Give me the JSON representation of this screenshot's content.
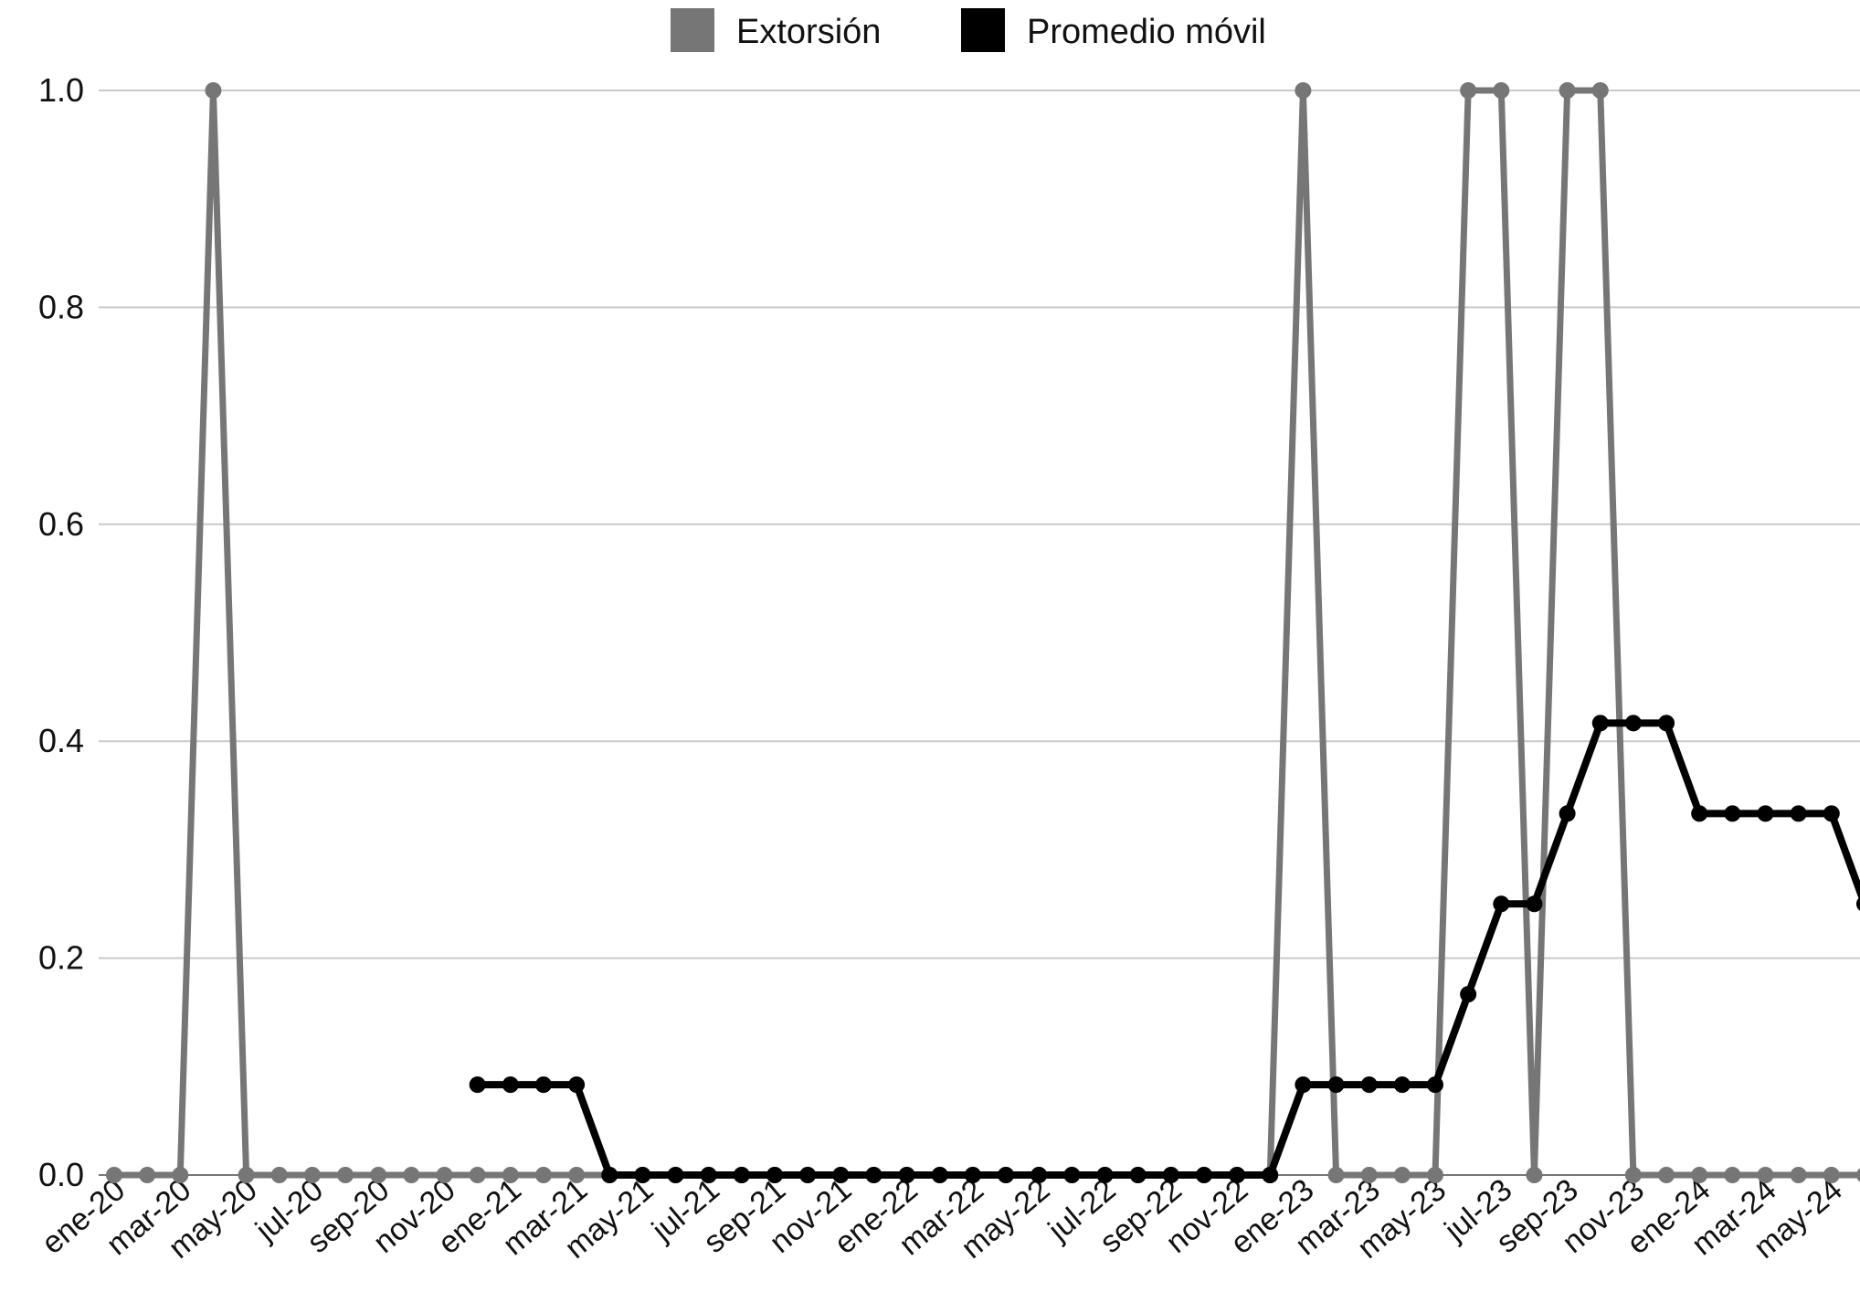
{
  "chart_data": {
    "type": "line",
    "title": "",
    "xlabel": "",
    "ylabel": "",
    "ylim": [
      0,
      1.0
    ],
    "yticks": [
      "0.0",
      "0.2",
      "0.4",
      "0.6",
      "0.8",
      "1.0"
    ],
    "grid": true,
    "legend": "top-center",
    "x": [
      "ene-20",
      "feb-20",
      "mar-20",
      "abr-20",
      "may-20",
      "jun-20",
      "jul-20",
      "ago-20",
      "sep-20",
      "oct-20",
      "nov-20",
      "dic-20",
      "ene-21",
      "feb-21",
      "mar-21",
      "abr-21",
      "may-21",
      "jun-21",
      "jul-21",
      "ago-21",
      "sep-21",
      "oct-21",
      "nov-21",
      "dic-21",
      "ene-22",
      "feb-22",
      "mar-22",
      "abr-22",
      "may-22",
      "jun-22",
      "jul-22",
      "ago-22",
      "sep-22",
      "oct-22",
      "nov-22",
      "dic-22",
      "ene-23",
      "feb-23",
      "mar-23",
      "abr-23",
      "may-23",
      "jun-23",
      "jul-23",
      "ago-23",
      "sep-23",
      "oct-23",
      "nov-23",
      "dic-23",
      "ene-24",
      "feb-24",
      "mar-24",
      "abr-24",
      "may-24",
      "jun-24"
    ],
    "xtick_labels": [
      "ene-20",
      "mar-20",
      "may-20",
      "jul-20",
      "sep-20",
      "nov-20",
      "ene-21",
      "mar-21",
      "may-21",
      "jul-21",
      "sep-21",
      "nov-21",
      "ene-22",
      "mar-22",
      "may-22",
      "jul-22",
      "sep-22",
      "nov-22",
      "ene-23",
      "mar-23",
      "may-23",
      "jul-23",
      "sep-23",
      "nov-23",
      "ene-24",
      "mar-24",
      "may-24"
    ],
    "series": [
      {
        "name": "Extorsión",
        "color": "#767676",
        "values": [
          0,
          0,
          0,
          1,
          0,
          0,
          0,
          0,
          0,
          0,
          0,
          0,
          0,
          0,
          0,
          0,
          0,
          0,
          0,
          0,
          0,
          0,
          0,
          0,
          0,
          0,
          0,
          0,
          0,
          0,
          0,
          0,
          0,
          0,
          0,
          0,
          1,
          0,
          0,
          0,
          0,
          1,
          1,
          0,
          1,
          1,
          0,
          0,
          0,
          0,
          0,
          0,
          0,
          0
        ]
      },
      {
        "name": "Promedio móvil",
        "color": "#000000",
        "values": [
          null,
          null,
          null,
          null,
          null,
          null,
          null,
          null,
          null,
          null,
          null,
          0.0833,
          0.0833,
          0.0833,
          0.0833,
          0,
          0,
          0,
          0,
          0,
          0,
          0,
          0,
          0,
          0,
          0,
          0,
          0,
          0,
          0,
          0,
          0,
          0,
          0,
          0,
          0,
          0.0833,
          0.0833,
          0.0833,
          0.0833,
          0.0833,
          0.1667,
          0.25,
          0.25,
          0.3333,
          0.4167,
          0.4167,
          0.4167,
          0.3333,
          0.3333,
          0.3333,
          0.3333,
          0.3333,
          0.25
        ]
      }
    ]
  }
}
